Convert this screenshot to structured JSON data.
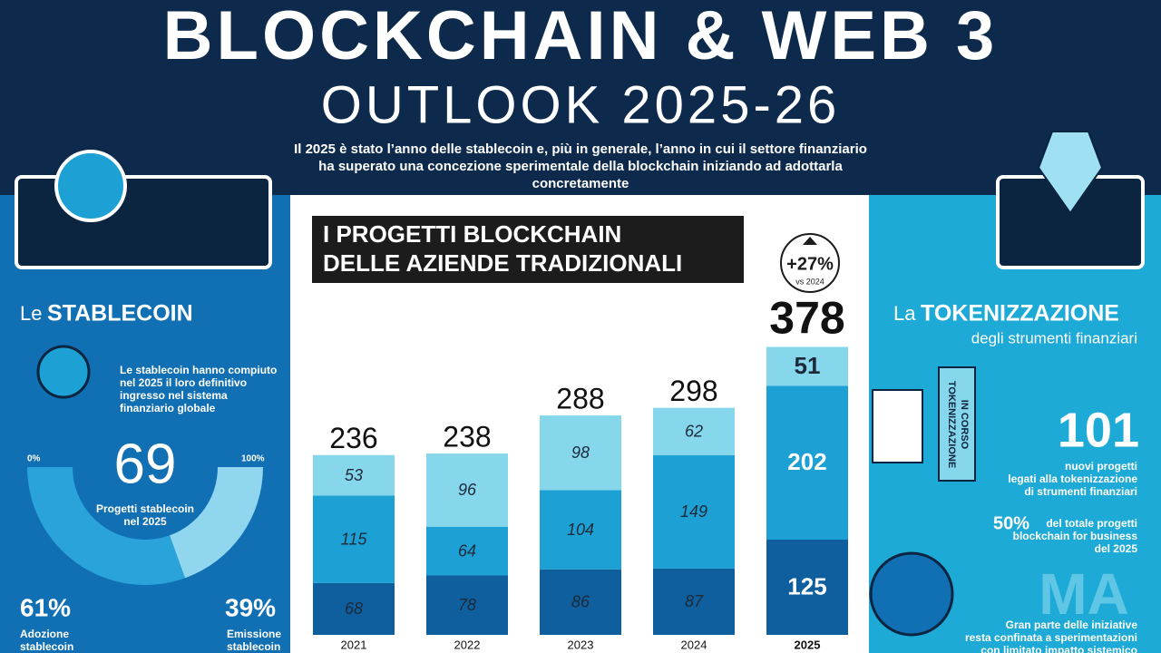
{
  "header": {
    "title": "BLOCKCHAIN & WEB 3",
    "subtitle": "OUTLOOK 2025-26",
    "intro": [
      "Il 2025 è stato l’anno delle stablecoin e, più in generale, l’anno in cui il settore finanziario",
      "ha superato una concezione sperimentale della blockchain iniziando ad adottarla",
      "concretamente"
    ]
  },
  "stablecoin": {
    "heading_prefix": "Le",
    "heading": "STABLECOIN",
    "text": [
      "Le stablecoin hanno compiuto",
      "nel 2025 il loro definitivo",
      "ingresso nel sistema",
      "finanziario globale"
    ],
    "scale_min": "0%",
    "scale_max": "100%",
    "count": "69",
    "count_label": [
      "Progetti stablecoin",
      "nel 2025"
    ],
    "adoption": 61,
    "adoption_label": "61%",
    "adoption_text": [
      "Adozione",
      "stablecoin"
    ],
    "issuance": 39,
    "issuance_label": "39%",
    "issuance_text": [
      "Emissione",
      "stablecoin"
    ]
  },
  "chart_data": {
    "type": "stacked-bar",
    "title": [
      "I PROGETTI BLOCKCHAIN",
      "DELLE AZIENDE TRADIZIONALI"
    ],
    "categories": [
      "2021",
      "2022",
      "2023",
      "2024",
      "2025"
    ],
    "series": [
      {
        "color": "#0f5f9e",
        "values": [
          68,
          78,
          86,
          87,
          125
        ]
      },
      {
        "color": "#1da0d4",
        "values": [
          115,
          64,
          104,
          149,
          202
        ]
      },
      {
        "color": "#86d7ec",
        "values": [
          53,
          96,
          98,
          62,
          51
        ]
      }
    ],
    "totals": [
      "236",
      "238",
      "288",
      "298",
      "378"
    ],
    "badge": {
      "value": "+27%",
      "label": "vs 2024"
    }
  },
  "tokenization": {
    "heading_prefix": "La",
    "heading": "TOKENIZZAZIONE",
    "subheading": "degli strumenti finanziari",
    "sign": [
      "TOKENIZZAZIONE",
      "IN CORSO"
    ],
    "count": "101",
    "count_text": [
      "nuovi progetti",
      "legati alla tokenizzazione",
      "di strumenti finanziari"
    ],
    "share": "50%",
    "share_text": [
      "del totale progetti",
      "blockchain for business",
      "del 2025"
    ],
    "but": "MA",
    "but_text": [
      "Gran parte delle iniziative",
      "resta confinata a sperimentazioni",
      "con limitato impatto sistemico"
    ]
  }
}
